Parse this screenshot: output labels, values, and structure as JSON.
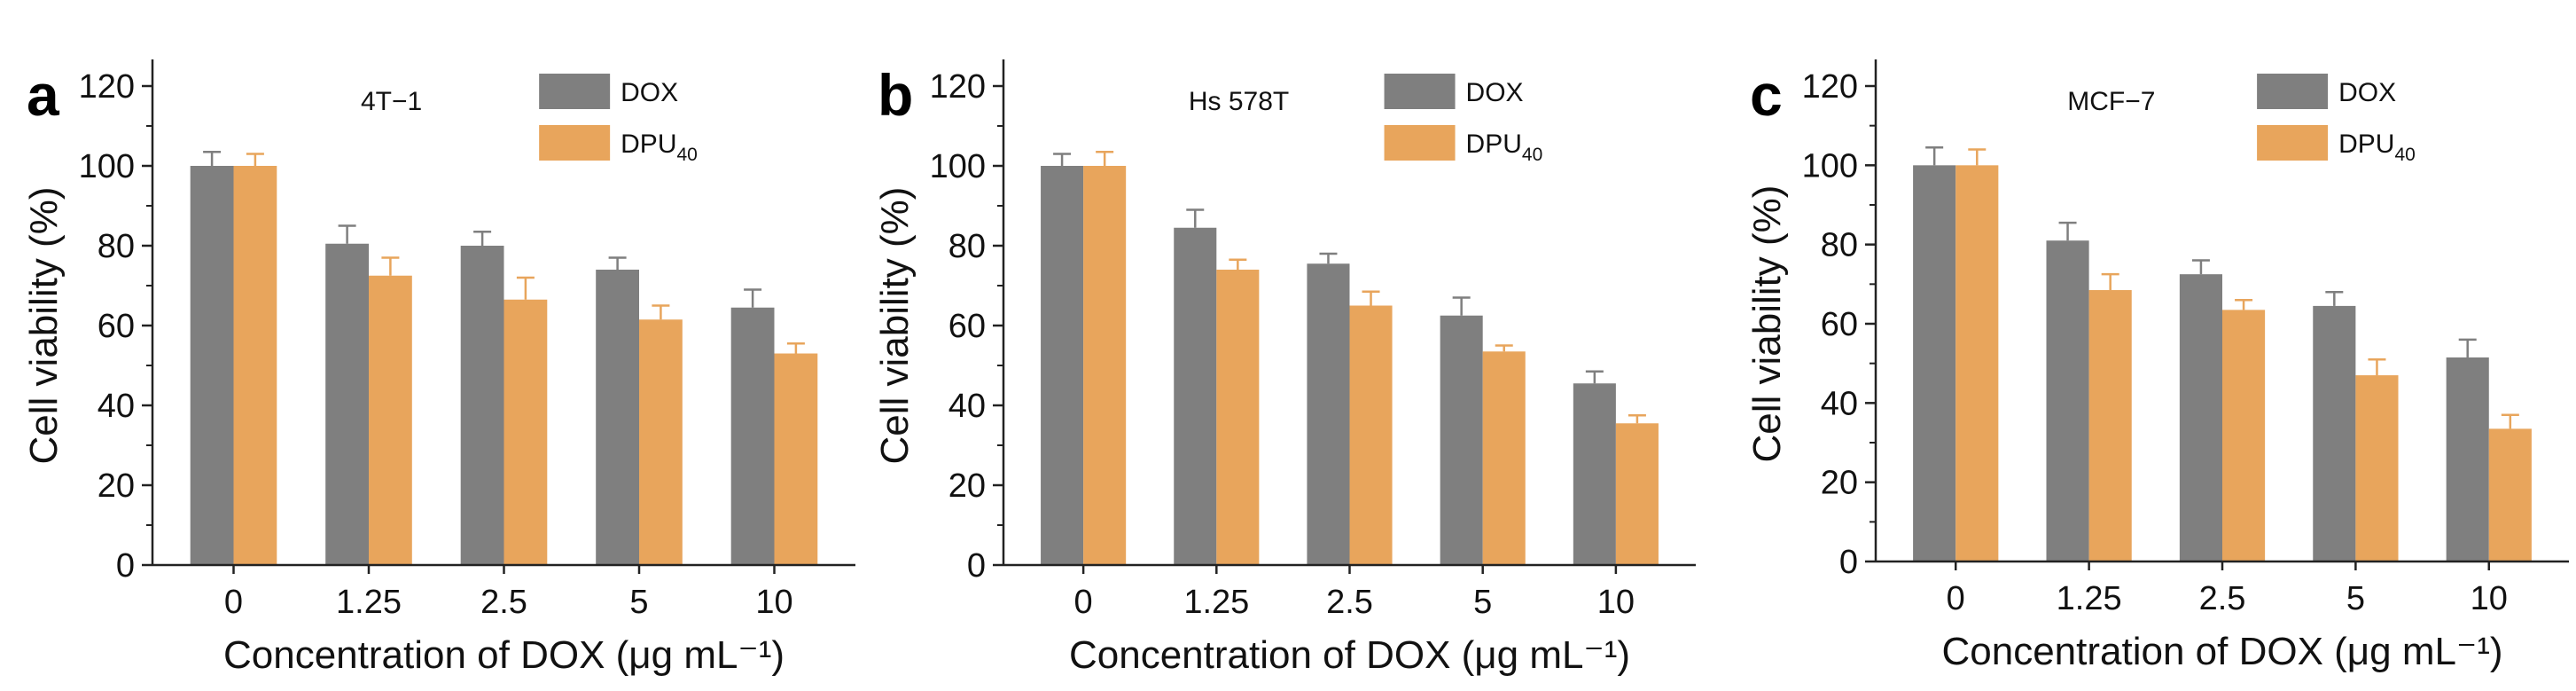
{
  "colors": {
    "dox": "#7f7f7f",
    "dpu": "#e8a55c",
    "axis": "#222222"
  },
  "chart_data": [
    {
      "type": "bar",
      "panel_letter": "a",
      "title": "4T−1",
      "xlabel": "Concentration of DOX (μg mL⁻¹)",
      "ylabel": "Cell viability (%)",
      "ylim": [
        0,
        120
      ],
      "yticks": [
        "0",
        "20",
        "40",
        "60",
        "80",
        "100",
        "120"
      ],
      "categories": [
        "0",
        "1.25",
        "2.5",
        "5",
        "10"
      ],
      "legend_position": "top-right",
      "series": [
        {
          "name": "DOX",
          "legend_base": "DOX",
          "legend_sub": "",
          "values": [
            100,
            80.5,
            80,
            74,
            64.5
          ],
          "errors": [
            3.5,
            4.5,
            3.5,
            3,
            4.5
          ]
        },
        {
          "name": "DPU40",
          "legend_base": "DPU",
          "legend_sub": "40",
          "values": [
            100,
            72.5,
            66.5,
            61.5,
            53
          ],
          "errors": [
            3,
            4.5,
            5.5,
            3.5,
            2.5
          ]
        }
      ]
    },
    {
      "type": "bar",
      "panel_letter": "b",
      "title": "Hs 578T",
      "xlabel": "Concentration of DOX (μg mL⁻¹)",
      "ylabel": "Cell viability (%)",
      "ylim": [
        0,
        120
      ],
      "yticks": [
        "0",
        "20",
        "40",
        "60",
        "80",
        "100",
        "120"
      ],
      "categories": [
        "0",
        "1.25",
        "2.5",
        "5",
        "10"
      ],
      "legend_position": "top-right",
      "series": [
        {
          "name": "DOX",
          "legend_base": "DOX",
          "legend_sub": "",
          "values": [
            100,
            84.5,
            75.5,
            62.5,
            45.5
          ],
          "errors": [
            3,
            4.5,
            2.5,
            4.5,
            3
          ]
        },
        {
          "name": "DPU40",
          "legend_base": "DPU",
          "legend_sub": "40",
          "values": [
            100,
            74,
            65,
            53.5,
            35.5
          ],
          "errors": [
            3.5,
            2.5,
            3.5,
            1.5,
            2
          ]
        }
      ]
    },
    {
      "type": "bar",
      "panel_letter": "c",
      "title": "MCF−7",
      "xlabel": "Concentration of DOX (μg mL⁻¹)",
      "ylabel": "Cell viability (%)",
      "ylim": [
        0,
        120
      ],
      "yticks": [
        "0",
        "20",
        "40",
        "60",
        "80",
        "100",
        "120"
      ],
      "categories": [
        "0",
        "1.25",
        "2.5",
        "5",
        "10"
      ],
      "legend_position": "top-right",
      "series": [
        {
          "name": "DOX",
          "legend_base": "DOX",
          "legend_sub": "",
          "values": [
            100,
            81,
            72.5,
            64.5,
            51.5
          ],
          "errors": [
            4.5,
            4.5,
            3.5,
            3.5,
            4.5
          ]
        },
        {
          "name": "DPU40",
          "legend_base": "DPU",
          "legend_sub": "40",
          "values": [
            100,
            68.5,
            63.5,
            47,
            33.5
          ],
          "errors": [
            4,
            4,
            2.5,
            4,
            3.5
          ]
        }
      ]
    }
  ]
}
